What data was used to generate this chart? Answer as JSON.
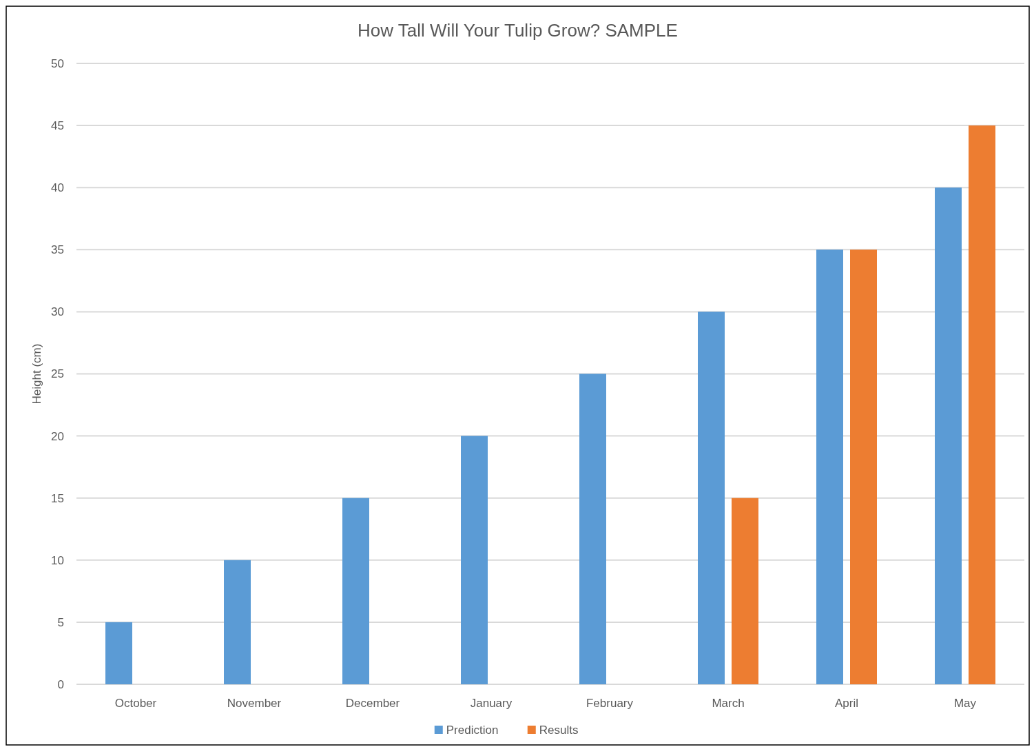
{
  "chart_data": {
    "type": "bar",
    "title": "How Tall Will Your Tulip Grow? SAMPLE",
    "ylabel": "Height (cm)",
    "categories": [
      "October",
      "November",
      "December",
      "January",
      "February",
      "March",
      "April",
      "May"
    ],
    "series": [
      {
        "name": "Prediction",
        "color": "#5b9bd5",
        "values": [
          5,
          10,
          15,
          20,
          25,
          30,
          35,
          40
        ]
      },
      {
        "name": "Results",
        "color": "#ed7d31",
        "values": [
          null,
          null,
          null,
          null,
          null,
          15,
          35,
          45
        ]
      }
    ],
    "ylim": [
      0,
      50
    ],
    "yticks": [
      0,
      5,
      10,
      15,
      20,
      25,
      30,
      35,
      40,
      45,
      50
    ],
    "grid": "y",
    "legend": "bottom"
  }
}
